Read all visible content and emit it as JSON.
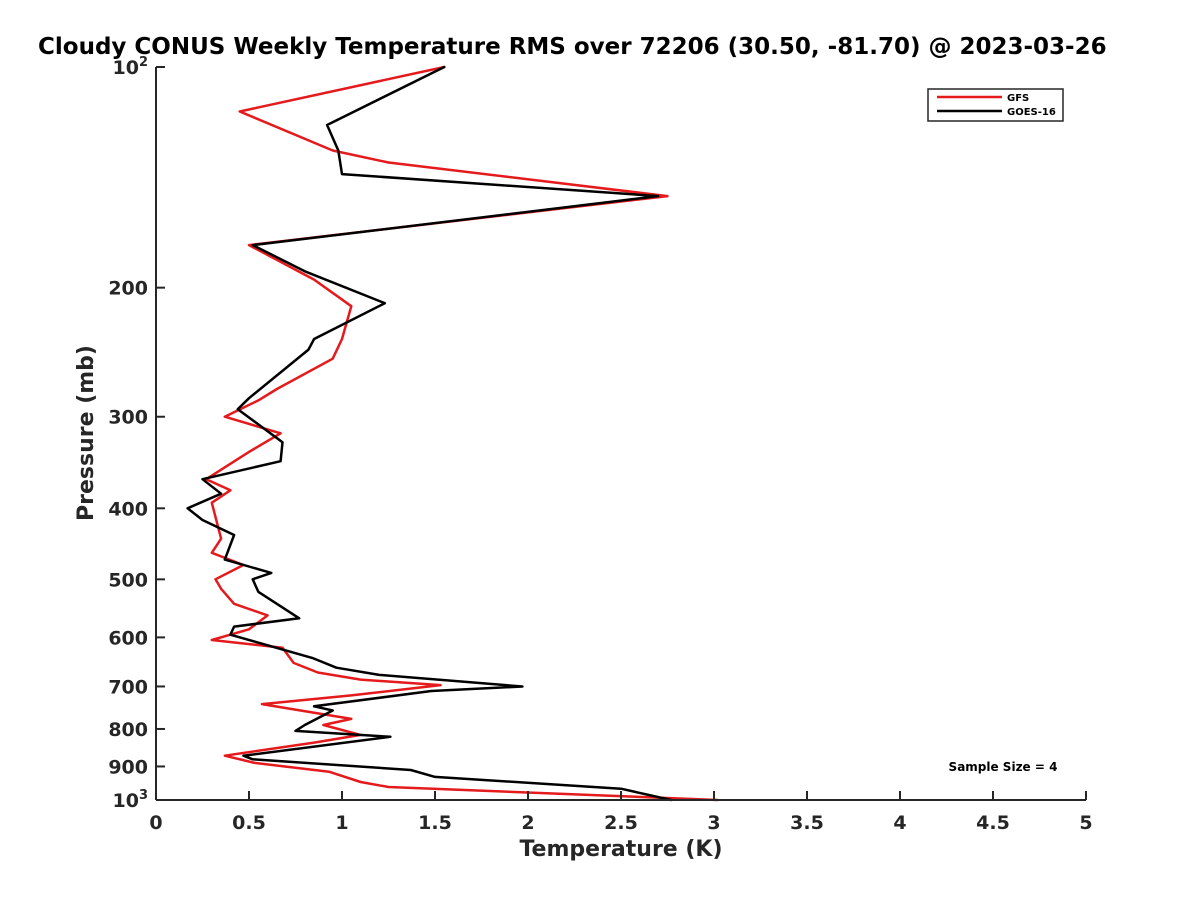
{
  "chart_data": {
    "type": "line",
    "title": "Cloudy CONUS Weekly Temperature RMS over 72206 (30.50, -81.70) @ 2023-03-26",
    "xlabel": "Temperature (K)",
    "ylabel": "Pressure (mb)",
    "xlim": [
      0,
      5
    ],
    "ylim": [
      100,
      1000
    ],
    "yscale": "log",
    "y_reversed": true,
    "grid": false,
    "legend_position": "top-right",
    "xticks": [
      {
        "value": 0,
        "label": "0"
      },
      {
        "value": 0.5,
        "label": "0.5"
      },
      {
        "value": 1,
        "label": "1"
      },
      {
        "value": 1.5,
        "label": "1.5"
      },
      {
        "value": 2,
        "label": "2"
      },
      {
        "value": 2.5,
        "label": "2.5"
      },
      {
        "value": 3,
        "label": "3"
      },
      {
        "value": 3.5,
        "label": "3.5"
      },
      {
        "value": 4,
        "label": "4"
      },
      {
        "value": 4.5,
        "label": "4.5"
      },
      {
        "value": 5,
        "label": "5"
      }
    ],
    "yticks": [
      {
        "value": 100,
        "base": "10",
        "exp": "2"
      },
      {
        "value": 200,
        "base": "200",
        "exp": ""
      },
      {
        "value": 300,
        "base": "300",
        "exp": ""
      },
      {
        "value": 400,
        "base": "400",
        "exp": ""
      },
      {
        "value": 500,
        "base": "500",
        "exp": ""
      },
      {
        "value": 600,
        "base": "600",
        "exp": ""
      },
      {
        "value": 700,
        "base": "700",
        "exp": ""
      },
      {
        "value": 800,
        "base": "800",
        "exp": ""
      },
      {
        "value": 900,
        "base": "900",
        "exp": ""
      },
      {
        "value": 1000,
        "base": "10",
        "exp": "3"
      }
    ],
    "annotation": "Sample Size = 4",
    "series": [
      {
        "name": "GFS",
        "color": "#e41a1c",
        "points": [
          [
            1.55,
            100
          ],
          [
            0.45,
            115
          ],
          [
            0.95,
            130
          ],
          [
            1.25,
            135
          ],
          [
            2.75,
            150
          ],
          [
            0.5,
            175
          ],
          [
            0.85,
            195
          ],
          [
            1.05,
            212
          ],
          [
            1.0,
            235
          ],
          [
            0.95,
            250
          ],
          [
            0.65,
            275
          ],
          [
            0.55,
            285
          ],
          [
            0.37,
            300
          ],
          [
            0.67,
            316
          ],
          [
            0.5,
            335
          ],
          [
            0.27,
            365
          ],
          [
            0.4,
            378
          ],
          [
            0.3,
            393
          ],
          [
            0.35,
            440
          ],
          [
            0.3,
            460
          ],
          [
            0.47,
            478
          ],
          [
            0.32,
            500
          ],
          [
            0.35,
            515
          ],
          [
            0.42,
            540
          ],
          [
            0.6,
            560
          ],
          [
            0.5,
            585
          ],
          [
            0.3,
            605
          ],
          [
            0.68,
            620
          ],
          [
            0.74,
            650
          ],
          [
            0.87,
            670
          ],
          [
            1.1,
            685
          ],
          [
            1.53,
            697
          ],
          [
            1.05,
            720
          ],
          [
            0.57,
            740
          ],
          [
            1.05,
            775
          ],
          [
            0.9,
            790
          ],
          [
            1.1,
            815
          ],
          [
            0.85,
            835
          ],
          [
            0.37,
            870
          ],
          [
            0.53,
            890
          ],
          [
            0.93,
            915
          ],
          [
            1.1,
            945
          ],
          [
            1.25,
            960
          ],
          [
            3.02,
            1000
          ]
        ]
      },
      {
        "name": "GOES-16",
        "color": "#000000",
        "points": [
          [
            1.55,
            100
          ],
          [
            0.92,
            120
          ],
          [
            0.98,
            130
          ],
          [
            1.0,
            140
          ],
          [
            2.7,
            150
          ],
          [
            0.52,
            175
          ],
          [
            0.8,
            190
          ],
          [
            1.23,
            210
          ],
          [
            0.85,
            235
          ],
          [
            0.82,
            243
          ],
          [
            0.5,
            283
          ],
          [
            0.44,
            293
          ],
          [
            0.68,
            325
          ],
          [
            0.67,
            345
          ],
          [
            0.25,
            365
          ],
          [
            0.35,
            382
          ],
          [
            0.17,
            400
          ],
          [
            0.25,
            415
          ],
          [
            0.42,
            435
          ],
          [
            0.37,
            470
          ],
          [
            0.62,
            490
          ],
          [
            0.52,
            500
          ],
          [
            0.55,
            520
          ],
          [
            0.77,
            565
          ],
          [
            0.42,
            580
          ],
          [
            0.4,
            595
          ],
          [
            0.84,
            640
          ],
          [
            0.97,
            660
          ],
          [
            1.2,
            675
          ],
          [
            1.97,
            700
          ],
          [
            1.48,
            710
          ],
          [
            0.85,
            745
          ],
          [
            0.95,
            755
          ],
          [
            0.8,
            790
          ],
          [
            0.75,
            805
          ],
          [
            1.26,
            820
          ],
          [
            0.47,
            870
          ],
          [
            0.52,
            880
          ],
          [
            1.37,
            910
          ],
          [
            1.5,
            930
          ],
          [
            2.5,
            965
          ],
          [
            2.77,
            1000
          ]
        ]
      }
    ]
  }
}
